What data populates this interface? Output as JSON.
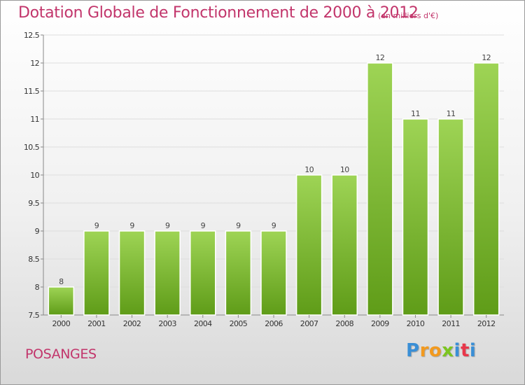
{
  "title": "Dotation Globale de Fonctionnement de 2000 à 2012",
  "subtitle": "(en milliers d'€)",
  "place": "POSANGES",
  "logo": {
    "letters": [
      "P",
      "r",
      "o",
      "x",
      "i",
      "t",
      "i"
    ],
    "colors": [
      "#3a8fd6",
      "#f29a1f",
      "#f29a1f",
      "#7cc520",
      "#3a8fd6",
      "#e8374a",
      "#3a8fd6"
    ]
  },
  "colors": {
    "bar_top": "#9ed455",
    "bar_bottom": "#5f9c18",
    "title": "#c2356b"
  },
  "chart_data": {
    "type": "bar",
    "categories": [
      "2000",
      "2001",
      "2002",
      "2003",
      "2004",
      "2005",
      "2006",
      "2007",
      "2008",
      "2009",
      "2010",
      "2011",
      "2012"
    ],
    "values": [
      8,
      9,
      9,
      9,
      9,
      9,
      9,
      10,
      10,
      12,
      11,
      11,
      12
    ],
    "ylim": [
      7.5,
      12.5
    ],
    "yticks": [
      7.5,
      8,
      8.5,
      9,
      9.5,
      10,
      10.5,
      11,
      11.5,
      12,
      12.5
    ],
    "ytick_labels": [
      "7.5",
      "8",
      "8.5",
      "9",
      "9.5",
      "10",
      "10.5",
      "11",
      "11.5",
      "12",
      "12.5"
    ],
    "grid": true
  }
}
